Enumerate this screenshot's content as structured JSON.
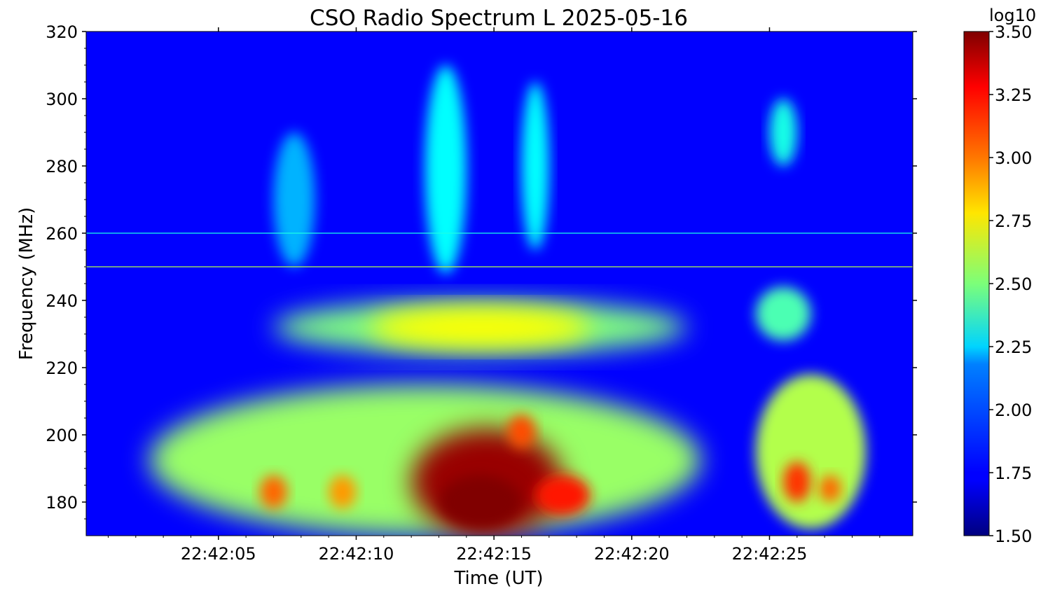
{
  "chart_data": {
    "type": "heatmap",
    "title": "CSO Radio Spectrum L 2025-05-16",
    "xlabel": "Time (UT)",
    "ylabel": "Frequency (MHz)",
    "colorbar_label": "log10",
    "colormap": "jet",
    "xlim": [
      "22:42:00.2",
      "22:42:30.2"
    ],
    "ylim": [
      170,
      320
    ],
    "x_ticks": [
      "22:42:05",
      "22:42:10",
      "22:42:15",
      "22:42:20",
      "22:42:25"
    ],
    "x_tick_values": [
      5,
      10,
      15,
      20,
      25
    ],
    "y_ticks": [
      "180",
      "200",
      "220",
      "240",
      "260",
      "280",
      "300",
      "320"
    ],
    "y_tick_values": [
      180,
      200,
      220,
      240,
      260,
      280,
      300,
      320
    ],
    "colorbar_range": [
      1.5,
      3.5
    ],
    "colorbar_ticks": [
      "1.50",
      "1.75",
      "2.00",
      "2.25",
      "2.50",
      "2.75",
      "3.00",
      "3.25",
      "3.50"
    ],
    "colorbar_tick_values": [
      1.5,
      1.75,
      2.0,
      2.25,
      2.5,
      2.75,
      3.0,
      3.25,
      3.5
    ],
    "background_level": 1.75,
    "emission_features": [
      {
        "t_start": 2.5,
        "t_end": 22.5,
        "f_low": 170,
        "f_high": 215,
        "level": 2.55
      },
      {
        "t_start": 12.0,
        "t_end": 17.5,
        "f_low": 170,
        "f_high": 202,
        "level": 3.45
      },
      {
        "t_start": 13.0,
        "t_end": 16.0,
        "f_low": 172,
        "f_high": 188,
        "level": 3.5
      },
      {
        "t_start": 16.5,
        "t_end": 18.5,
        "f_low": 176,
        "f_high": 188,
        "level": 3.2
      },
      {
        "t_start": 6.5,
        "t_end": 7.5,
        "f_low": 178,
        "f_high": 188,
        "level": 3.05
      },
      {
        "t_start": 9.0,
        "t_end": 10.0,
        "f_low": 178,
        "f_high": 188,
        "level": 2.95
      },
      {
        "t_start": 15.5,
        "t_end": 16.5,
        "f_low": 196,
        "f_high": 206,
        "level": 3.1
      },
      {
        "t_start": 7.0,
        "t_end": 22.0,
        "f_low": 224,
        "f_high": 240,
        "level": 2.5
      },
      {
        "t_start": 10.5,
        "t_end": 18.5,
        "f_low": 226,
        "f_high": 238,
        "level": 2.75
      },
      {
        "t_start": 24.5,
        "t_end": 28.5,
        "f_low": 172,
        "f_high": 218,
        "level": 2.6
      },
      {
        "t_start": 25.5,
        "t_end": 26.5,
        "f_low": 180,
        "f_high": 192,
        "level": 3.15
      },
      {
        "t_start": 26.8,
        "t_end": 27.6,
        "f_low": 180,
        "f_high": 188,
        "level": 3.05
      },
      {
        "t_start": 24.5,
        "t_end": 26.5,
        "f_low": 228,
        "f_high": 244,
        "level": 2.4
      },
      {
        "t_start": 12.5,
        "t_end": 14.0,
        "f_low": 248,
        "f_high": 310,
        "level": 2.25
      },
      {
        "t_start": 16.0,
        "t_end": 17.0,
        "f_low": 255,
        "f_high": 305,
        "level": 2.25
      },
      {
        "t_start": 25.0,
        "t_end": 26.0,
        "f_low": 280,
        "f_high": 300,
        "level": 2.3
      },
      {
        "t_start": 7.0,
        "t_end": 8.5,
        "f_low": 250,
        "f_high": 290,
        "level": 2.1
      }
    ],
    "interference_lines": [
      {
        "freq": 250,
        "level": 2.6
      },
      {
        "freq": 260,
        "level": 2.3
      }
    ]
  }
}
